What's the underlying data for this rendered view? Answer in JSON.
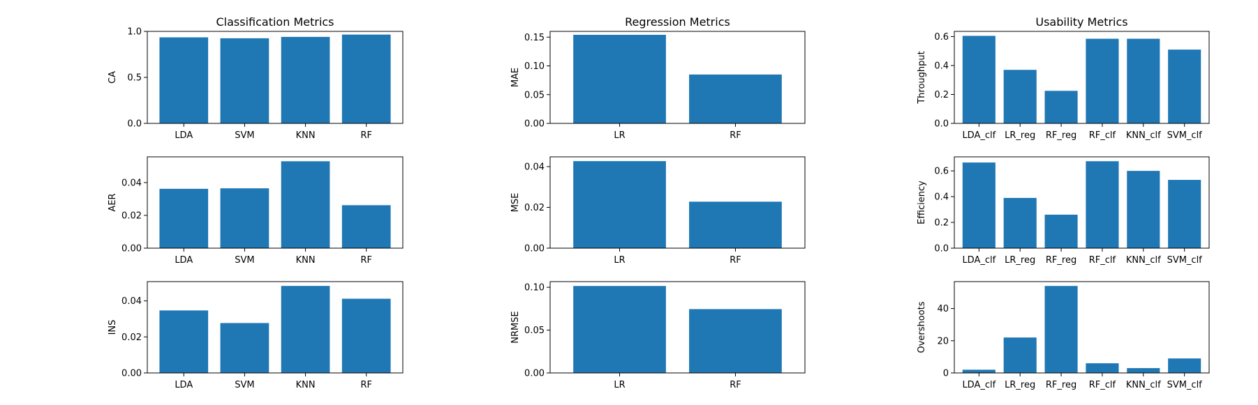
{
  "figure": {
    "bar_color": "#1f77b4",
    "axes_color": "#000000",
    "background": "#ffffff"
  },
  "chart_data": [
    {
      "type": "bar",
      "title": "Classification Metrics",
      "xlabel": "",
      "ylabel": "CA",
      "categories": [
        "LDA",
        "SVM",
        "KNN",
        "RF"
      ],
      "values": [
        0.935,
        0.925,
        0.94,
        0.965
      ],
      "ylim": [
        0,
        1.0
      ],
      "yticks": [
        0.0,
        0.5,
        1.0
      ],
      "ytick_labels": [
        "0.0",
        "0.5",
        "1.0"
      ]
    },
    {
      "type": "bar",
      "title": "Regression Metrics",
      "xlabel": "",
      "ylabel": "MAE",
      "categories": [
        "LR",
        "RF"
      ],
      "values": [
        0.154,
        0.085
      ],
      "ylim": [
        0,
        0.16
      ],
      "yticks": [
        0.0,
        0.05,
        0.1,
        0.15
      ],
      "ytick_labels": [
        "0.00",
        "0.05",
        "0.10",
        "0.15"
      ]
    },
    {
      "type": "bar",
      "title": "Usability Metrics",
      "xlabel": "",
      "ylabel": "Throughput",
      "categories": [
        "LDA_clf",
        "LR_reg",
        "RF_reg",
        "RF_clf",
        "KNN_clf",
        "SVM_clf"
      ],
      "values": [
        0.605,
        0.37,
        0.225,
        0.585,
        0.585,
        0.51
      ],
      "ylim": [
        0,
        0.636
      ],
      "yticks": [
        0.0,
        0.2,
        0.4,
        0.6
      ],
      "ytick_labels": [
        "0.0",
        "0.2",
        "0.4",
        "0.6"
      ]
    },
    {
      "type": "bar",
      "title": "",
      "xlabel": "",
      "ylabel": "AER",
      "categories": [
        "LDA",
        "SVM",
        "KNN",
        "RF"
      ],
      "values": [
        0.0362,
        0.0365,
        0.053,
        0.0262
      ],
      "ylim": [
        0,
        0.0557
      ],
      "yticks": [
        0.0,
        0.02,
        0.04
      ],
      "ytick_labels": [
        "0.00",
        "0.02",
        "0.04"
      ]
    },
    {
      "type": "bar",
      "title": "",
      "xlabel": "",
      "ylabel": "MSE",
      "categories": [
        "LR",
        "RF"
      ],
      "values": [
        0.0427,
        0.0228
      ],
      "ylim": [
        0,
        0.0448
      ],
      "yticks": [
        0.0,
        0.02,
        0.04
      ],
      "ytick_labels": [
        "0.00",
        "0.02",
        "0.04"
      ]
    },
    {
      "type": "bar",
      "title": "",
      "xlabel": "",
      "ylabel": "Efficiency",
      "categories": [
        "LDA_clf",
        "LR_reg",
        "RF_reg",
        "RF_clf",
        "KNN_clf",
        "SVM_clf"
      ],
      "values": [
        0.665,
        0.39,
        0.26,
        0.675,
        0.6,
        0.53
      ],
      "ylim": [
        0,
        0.709
      ],
      "yticks": [
        0.0,
        0.2,
        0.4,
        0.6
      ],
      "ytick_labels": [
        "0.0",
        "0.2",
        "0.4",
        "0.6"
      ]
    },
    {
      "type": "bar",
      "title": "",
      "xlabel": "",
      "ylabel": "INS",
      "categories": [
        "LDA",
        "SVM",
        "KNN",
        "RF"
      ],
      "values": [
        0.0347,
        0.0277,
        0.0483,
        0.0412
      ],
      "ylim": [
        0,
        0.0507
      ],
      "yticks": [
        0.0,
        0.02,
        0.04
      ],
      "ytick_labels": [
        "0.00",
        "0.02",
        "0.04"
      ]
    },
    {
      "type": "bar",
      "title": "",
      "xlabel": "",
      "ylabel": "NRMSE",
      "categories": [
        "LR",
        "RF"
      ],
      "values": [
        0.1015,
        0.0745
      ],
      "ylim": [
        0,
        0.1066
      ],
      "yticks": [
        0.0,
        0.05,
        0.1
      ],
      "ytick_labels": [
        "0.00",
        "0.05",
        "0.10"
      ]
    },
    {
      "type": "bar",
      "title": "",
      "xlabel": "",
      "ylabel": "Overshoots",
      "categories": [
        "LDA_clf",
        "LR_reg",
        "RF_reg",
        "RF_clf",
        "KNN_clf",
        "SVM_clf"
      ],
      "values": [
        2,
        22,
        54,
        6,
        3,
        9
      ],
      "ylim": [
        0,
        56.7
      ],
      "yticks": [
        0,
        20,
        40
      ],
      "ytick_labels": [
        "0",
        "20",
        "40"
      ]
    }
  ]
}
